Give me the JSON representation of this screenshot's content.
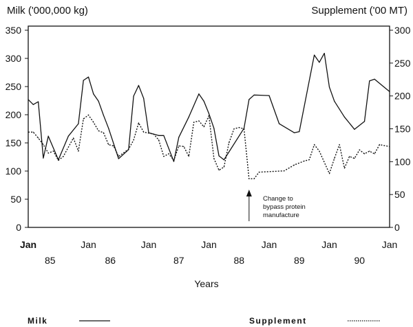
{
  "chart_data": {
    "type": "line",
    "left_axis_label": "Milk ('000,000 kg)",
    "right_axis_label": "Supplement ('00 MT)",
    "xlabel": "Years",
    "x_tick_labels": [
      "Jan",
      "Jan",
      "Jan",
      "Jan",
      "Jan",
      "Jan",
      "Jan"
    ],
    "x_tick_dates": [
      "1985-01",
      "1986-01",
      "1987-01",
      "1988-01",
      "1989-01",
      "1990-01",
      "1991-01"
    ],
    "year_labels": [
      "85",
      "86",
      "87",
      "88",
      "89",
      "90"
    ],
    "xlim": [
      "1985-01",
      "1991-01"
    ],
    "left_ylim": [
      0,
      350
    ],
    "left_ticks": [
      0,
      50,
      100,
      150,
      200,
      250,
      300,
      350
    ],
    "right_ylim": [
      0,
      300
    ],
    "right_ticks": [
      0,
      50,
      100,
      150,
      200,
      250,
      300
    ],
    "grid": false,
    "legend_placement": "bottom",
    "annotation": {
      "lines": [
        "Change to",
        "bypass protein",
        "manufacture"
      ],
      "date": "1988-09"
    },
    "series": [
      {
        "name": "Milk",
        "axis": "left",
        "style": "solid",
        "color": "#111111",
        "points": [
          [
            "1985-01",
            227
          ],
          [
            "1985-02",
            218
          ],
          [
            "1985-03",
            223
          ],
          [
            "1985-04",
            123
          ],
          [
            "1985-05",
            162
          ],
          [
            "1985-07",
            120
          ],
          [
            "1985-09",
            162
          ],
          [
            "1985-11",
            184
          ],
          [
            "1985-12",
            261
          ],
          [
            "1986-01",
            267
          ],
          [
            "1986-02",
            237
          ],
          [
            "1986-03",
            224
          ],
          [
            "1986-04",
            199
          ],
          [
            "1986-05",
            176
          ],
          [
            "1986-07",
            122
          ],
          [
            "1986-09",
            138
          ],
          [
            "1986-10",
            233
          ],
          [
            "1986-11",
            252
          ],
          [
            "1986-12",
            229
          ],
          [
            "1987-01",
            168
          ],
          [
            "1987-03",
            163
          ],
          [
            "1987-04",
            163
          ],
          [
            "1987-06",
            117
          ],
          [
            "1987-07",
            160
          ],
          [
            "1987-09",
            196
          ],
          [
            "1987-11",
            237
          ],
          [
            "1987-12",
            224
          ],
          [
            "1988-01",
            202
          ],
          [
            "1988-02",
            176
          ],
          [
            "1988-03",
            127
          ],
          [
            "1988-04",
            120
          ],
          [
            "1988-08",
            176
          ],
          [
            "1988-09",
            227
          ],
          [
            "1988-10",
            235
          ],
          [
            "1989-01",
            234
          ],
          [
            "1989-03",
            184
          ],
          [
            "1989-06",
            168
          ],
          [
            "1989-07",
            170
          ],
          [
            "1989-10",
            306
          ],
          [
            "1989-11",
            293
          ],
          [
            "1989-12",
            309
          ],
          [
            "1990-01",
            249
          ],
          [
            "1990-02",
            224
          ],
          [
            "1990-04",
            196
          ],
          [
            "1990-06",
            174
          ],
          [
            "1990-08",
            188
          ],
          [
            "1990-09",
            260
          ],
          [
            "1990-10",
            263
          ],
          [
            "1991-01",
            241
          ]
        ]
      },
      {
        "name": "Supplement",
        "axis": "right",
        "style": "dotted",
        "color": "#111111",
        "points": [
          [
            "1985-01",
            145
          ],
          [
            "1985-02",
            145
          ],
          [
            "1985-03",
            136
          ],
          [
            "1985-04",
            126
          ],
          [
            "1985-05",
            113
          ],
          [
            "1985-06",
            116
          ],
          [
            "1985-07",
            102
          ],
          [
            "1985-08",
            108
          ],
          [
            "1985-10",
            136
          ],
          [
            "1985-11",
            116
          ],
          [
            "1985-12",
            165
          ],
          [
            "1986-01",
            171
          ],
          [
            "1986-02",
            160
          ],
          [
            "1986-03",
            147
          ],
          [
            "1986-04",
            144
          ],
          [
            "1986-05",
            126
          ],
          [
            "1986-06",
            124
          ],
          [
            "1986-07",
            108
          ],
          [
            "1986-09",
            119
          ],
          [
            "1986-10",
            133
          ],
          [
            "1986-11",
            159
          ],
          [
            "1986-12",
            145
          ],
          [
            "1987-02",
            142
          ],
          [
            "1987-03",
            133
          ],
          [
            "1987-04",
            108
          ],
          [
            "1987-05",
            112
          ],
          [
            "1987-06",
            102
          ],
          [
            "1987-07",
            124
          ],
          [
            "1987-08",
            123
          ],
          [
            "1987-09",
            108
          ],
          [
            "1987-10",
            160
          ],
          [
            "1987-11",
            162
          ],
          [
            "1987-12",
            153
          ],
          [
            "1988-01",
            170
          ],
          [
            "1988-02",
            105
          ],
          [
            "1988-03",
            87
          ],
          [
            "1988-04",
            92
          ],
          [
            "1988-05",
            129
          ],
          [
            "1988-06",
            150
          ],
          [
            "1988-07",
            152
          ],
          [
            "1988-08",
            150
          ],
          [
            "1988-09",
            74
          ],
          [
            "1988-10",
            74
          ],
          [
            "1988-11",
            84
          ],
          [
            "1989-04",
            86
          ],
          [
            "1989-06",
            95
          ],
          [
            "1989-08",
            101
          ],
          [
            "1989-09",
            103
          ],
          [
            "1989-10",
            126
          ],
          [
            "1989-11",
            116
          ],
          [
            "1990-01",
            82
          ],
          [
            "1990-02",
            105
          ],
          [
            "1990-03",
            126
          ],
          [
            "1990-04",
            90
          ],
          [
            "1990-05",
            108
          ],
          [
            "1990-06",
            105
          ],
          [
            "1990-07",
            118
          ],
          [
            "1990-08",
            112
          ],
          [
            "1990-09",
            116
          ],
          [
            "1990-10",
            112
          ],
          [
            "1990-11",
            126
          ],
          [
            "1991-01",
            123
          ]
        ]
      }
    ]
  },
  "legend": {
    "milk": "Milk",
    "supplement": "Supplement"
  }
}
